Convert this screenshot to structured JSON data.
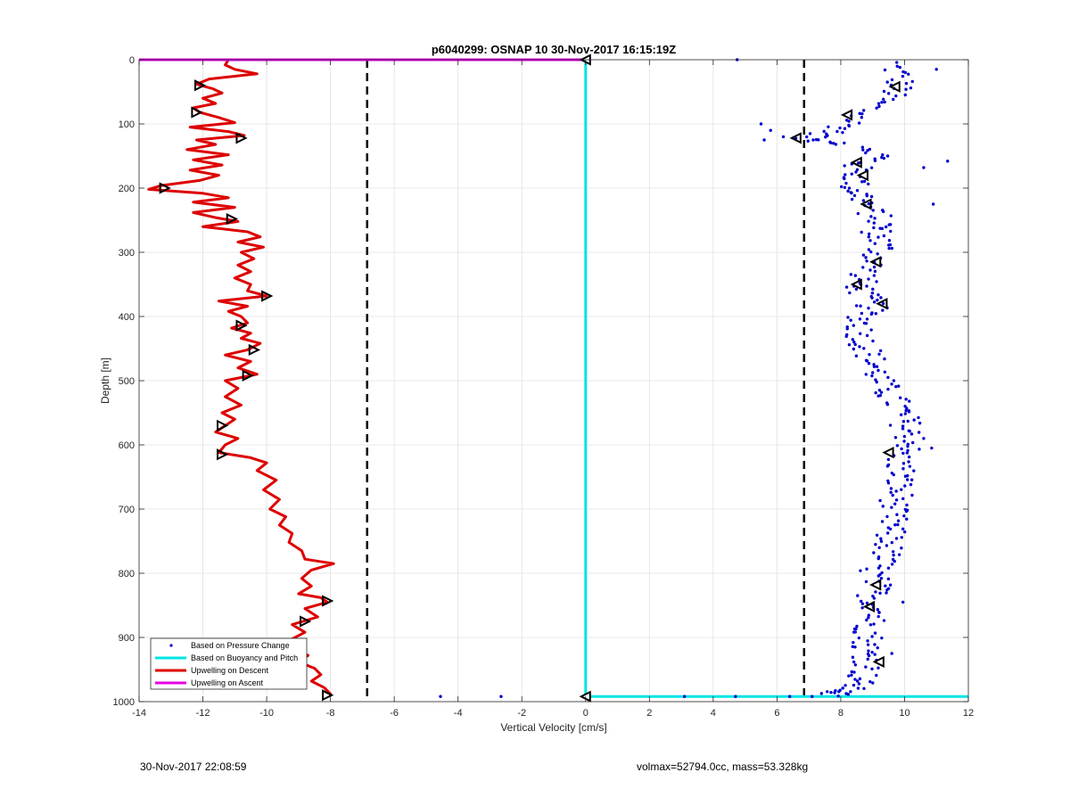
{
  "chart_data": {
    "type": "line",
    "title": "p6040299: OSNAP 10 30-Nov-2017 16:15:19Z",
    "xlabel": "Vertical Velocity [cm/s]",
    "ylabel": "Depth [m]",
    "xlim": [
      -14,
      12
    ],
    "ylim": [
      0,
      1000
    ],
    "y_reversed": true,
    "grid": true,
    "x_ticks": [
      "-14",
      "-12",
      "-10",
      "-8",
      "-6",
      "-4",
      "-2",
      "0",
      "2",
      "4",
      "6",
      "8",
      "10",
      "12"
    ],
    "y_ticks": [
      "0",
      "100",
      "200",
      "300",
      "400",
      "500",
      "600",
      "700",
      "800",
      "900",
      "1000"
    ],
    "threshold_lines": [
      -6.85,
      6.85
    ],
    "legend": {
      "location": "bottom-left",
      "entries": [
        {
          "label": "Based on Pressure Change",
          "color": "#0000cc",
          "style": "dots"
        },
        {
          "label": "Based on Buoyancy and Pitch",
          "color": "#00e5e5",
          "style": "line"
        },
        {
          "label": "Upwelling on Descent",
          "color": "#dd0000",
          "style": "line"
        },
        {
          "label": "Upwelling on Ascent",
          "color": "#e600e6",
          "style": "line"
        }
      ]
    },
    "series": [
      {
        "name": "Upwelling on Descent",
        "color": "#dd0000",
        "points": [
          [
            -11.2,
            0
          ],
          [
            -11.3,
            8
          ],
          [
            -11.0,
            15
          ],
          [
            -10.3,
            22
          ],
          [
            -11.8,
            30
          ],
          [
            -12.2,
            38
          ],
          [
            -11.7,
            45
          ],
          [
            -11.4,
            52
          ],
          [
            -12.0,
            60
          ],
          [
            -11.6,
            68
          ],
          [
            -12.3,
            75
          ],
          [
            -12.1,
            82
          ],
          [
            -11.5,
            90
          ],
          [
            -11.0,
            98
          ],
          [
            -12.4,
            105
          ],
          [
            -11.2,
            112
          ],
          [
            -10.7,
            118
          ],
          [
            -12.2,
            125
          ],
          [
            -11.6,
            132
          ],
          [
            -12.5,
            140
          ],
          [
            -11.2,
            148
          ],
          [
            -12.3,
            156
          ],
          [
            -11.4,
            164
          ],
          [
            -12.4,
            172
          ],
          [
            -11.5,
            180
          ],
          [
            -12.1,
            188
          ],
          [
            -13.3,
            196
          ],
          [
            -13.7,
            202
          ],
          [
            -12.0,
            208
          ],
          [
            -11.2,
            215
          ],
          [
            -12.3,
            222
          ],
          [
            -11.0,
            230
          ],
          [
            -12.3,
            238
          ],
          [
            -11.6,
            246
          ],
          [
            -10.9,
            252
          ],
          [
            -12.0,
            260
          ],
          [
            -10.6,
            268
          ],
          [
            -10.2,
            276
          ],
          [
            -10.9,
            284
          ],
          [
            -10.1,
            292
          ],
          [
            -10.8,
            300
          ],
          [
            -10.4,
            310
          ],
          [
            -10.9,
            320
          ],
          [
            -10.5,
            330
          ],
          [
            -11.0,
            340
          ],
          [
            -10.5,
            350
          ],
          [
            -10.6,
            360
          ],
          [
            -10.0,
            368
          ],
          [
            -11.5,
            376
          ],
          [
            -10.6,
            384
          ],
          [
            -11.2,
            392
          ],
          [
            -10.8,
            400
          ],
          [
            -10.6,
            410
          ],
          [
            -11.1,
            418
          ],
          [
            -10.5,
            426
          ],
          [
            -10.8,
            434
          ],
          [
            -10.2,
            442
          ],
          [
            -10.6,
            452
          ],
          [
            -11.3,
            460
          ],
          [
            -10.5,
            470
          ],
          [
            -10.9,
            480
          ],
          [
            -10.3,
            490
          ],
          [
            -11.3,
            500
          ],
          [
            -10.9,
            512
          ],
          [
            -11.3,
            525
          ],
          [
            -10.8,
            538
          ],
          [
            -11.4,
            550
          ],
          [
            -11.0,
            560
          ],
          [
            -11.3,
            570
          ],
          [
            -11.6,
            580
          ],
          [
            -10.9,
            590
          ],
          [
            -11.3,
            600
          ],
          [
            -11.5,
            612
          ],
          [
            -10.5,
            620
          ],
          [
            -10.0,
            628
          ],
          [
            -10.3,
            640
          ],
          [
            -9.7,
            655
          ],
          [
            -10.1,
            670
          ],
          [
            -9.6,
            685
          ],
          [
            -9.9,
            700
          ],
          [
            -9.4,
            712
          ],
          [
            -9.6,
            725
          ],
          [
            -9.2,
            738
          ],
          [
            -9.3,
            752
          ],
          [
            -8.9,
            765
          ],
          [
            -8.8,
            778
          ],
          [
            -7.9,
            785
          ],
          [
            -8.6,
            795
          ],
          [
            -8.9,
            808
          ],
          [
            -8.6,
            820
          ],
          [
            -9.0,
            832
          ],
          [
            -8.3,
            838
          ],
          [
            -8.1,
            845
          ],
          [
            -8.8,
            855
          ],
          [
            -8.4,
            868
          ],
          [
            -9.2,
            880
          ],
          [
            -8.8,
            892
          ],
          [
            -9.3,
            905
          ],
          [
            -9.2,
            918
          ],
          [
            -8.7,
            928
          ],
          [
            -9.0,
            938
          ],
          [
            -8.5,
            948
          ],
          [
            -8.3,
            958
          ],
          [
            -8.6,
            968
          ],
          [
            -8.2,
            978
          ],
          [
            -8.0,
            988
          ],
          [
            -8.0,
            992
          ]
        ]
      },
      {
        "name": "Upwelling on Ascent",
        "color": "#e600e6",
        "points": [
          [
            -14,
            0
          ],
          [
            0,
            0
          ]
        ]
      },
      {
        "name": "Based on Buoyancy and Pitch",
        "color": "#00e5e5",
        "points": [
          [
            0,
            0
          ],
          [
            0,
            992
          ],
          [
            12,
            992
          ]
        ]
      },
      {
        "name": "Based on Pressure Change",
        "color": "#0000cc",
        "type": "scatter",
        "centerline": [
          [
            9.6,
            5
          ],
          [
            9.9,
            30
          ],
          [
            9.7,
            50
          ],
          [
            9.1,
            70
          ],
          [
            8.4,
            95
          ],
          [
            7.9,
            110
          ],
          [
            6.9,
            122
          ],
          [
            8.2,
            130
          ],
          [
            9.3,
            150
          ],
          [
            8.5,
            165
          ],
          [
            8.5,
            185
          ],
          [
            8.4,
            200
          ],
          [
            8.7,
            215
          ],
          [
            8.9,
            235
          ],
          [
            9.3,
            255
          ],
          [
            9.1,
            270
          ],
          [
            9.3,
            290
          ],
          [
            9.1,
            310
          ],
          [
            8.8,
            330
          ],
          [
            8.6,
            350
          ],
          [
            8.7,
            365
          ],
          [
            9.0,
            385
          ],
          [
            8.7,
            400
          ],
          [
            8.6,
            420
          ],
          [
            8.7,
            440
          ],
          [
            8.9,
            460
          ],
          [
            9.1,
            480
          ],
          [
            9.2,
            500
          ],
          [
            9.5,
            520
          ],
          [
            9.8,
            540
          ],
          [
            10.0,
            560
          ],
          [
            10.1,
            580
          ],
          [
            10.2,
            600
          ],
          [
            9.8,
            620
          ],
          [
            9.9,
            640
          ],
          [
            9.8,
            660
          ],
          [
            9.8,
            680
          ],
          [
            9.6,
            700
          ],
          [
            9.6,
            720
          ],
          [
            9.5,
            740
          ],
          [
            9.5,
            760
          ],
          [
            9.3,
            780
          ],
          [
            9.0,
            800
          ],
          [
            9.1,
            820
          ],
          [
            9.0,
            840
          ],
          [
            9.2,
            860
          ],
          [
            8.9,
            880
          ],
          [
            8.9,
            900
          ],
          [
            8.8,
            920
          ],
          [
            8.9,
            940
          ],
          [
            8.7,
            960
          ],
          [
            8.5,
            975
          ],
          [
            8.0,
            985
          ],
          [
            7.6,
            990
          ]
        ],
        "outliers": [
          [
            4.75,
            0
          ],
          [
            11.0,
            15
          ],
          [
            5.5,
            100
          ],
          [
            5.8,
            110
          ],
          [
            6.2,
            120
          ],
          [
            5.6,
            125
          ],
          [
            11.35,
            158
          ],
          [
            10.6,
            168
          ],
          [
            10.9,
            225
          ],
          [
            10.6,
            590
          ],
          [
            10.85,
            605
          ],
          [
            9.95,
            845
          ],
          [
            8.45,
            915
          ],
          [
            9.6,
            925
          ],
          [
            -4.55,
            992
          ],
          [
            -2.65,
            992
          ],
          [
            3.1,
            992
          ],
          [
            4.7,
            992
          ],
          [
            6.4,
            992
          ],
          [
            7.1,
            992
          ]
        ]
      }
    ],
    "markers": {
      "descent": [
        [
          -12.1,
          40
        ],
        [
          -12.2,
          82
        ],
        [
          -10.8,
          122
        ],
        [
          -13.2,
          200
        ],
        [
          -11.1,
          248
        ],
        [
          -10.0,
          368
        ],
        [
          -10.8,
          414
        ],
        [
          -10.4,
          452
        ],
        [
          -10.6,
          492
        ],
        [
          -11.4,
          570
        ],
        [
          -11.4,
          615
        ],
        [
          -8.1,
          843
        ],
        [
          -8.8,
          875
        ],
        [
          -9.0,
          935
        ],
        [
          -8.1,
          990
        ]
      ],
      "pressure": [
        [
          9.7,
          42
        ],
        [
          8.2,
          86
        ],
        [
          6.6,
          122
        ],
        [
          8.5,
          160
        ],
        [
          8.7,
          180
        ],
        [
          8.8,
          225
        ],
        [
          9.1,
          315
        ],
        [
          8.5,
          350
        ],
        [
          9.3,
          380
        ],
        [
          9.5,
          612
        ],
        [
          9.1,
          818
        ],
        [
          8.9,
          852
        ],
        [
          9.2,
          938
        ]
      ],
      "zero": [
        [
          0,
          0
        ],
        [
          0,
          992
        ]
      ]
    }
  },
  "footer": {
    "timestamp": "30-Nov-2017 22:08:59",
    "summary": "volmax=52794.0cc, mass=53.328kg"
  }
}
